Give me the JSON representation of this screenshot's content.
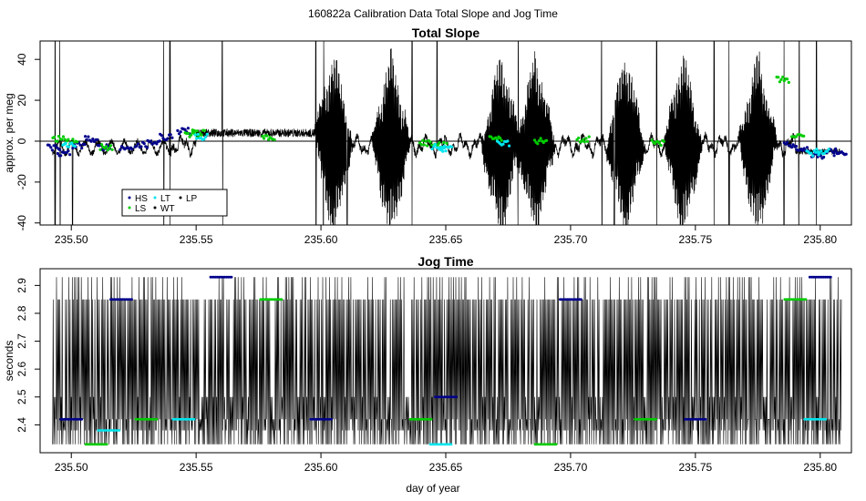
{
  "figure": {
    "title": "160822a   Calibration Data Total Slope and Jog Time",
    "xlabel": "day of year"
  },
  "colors": {
    "HS": "#00008b",
    "LS": "#00cc00",
    "LT": "#00e5ee",
    "WT": "#000000",
    "LP": "#000000",
    "trace": "#000000",
    "zero_line": "#000000"
  },
  "legend": {
    "placement": "bottom-left",
    "items": [
      {
        "label": "HS",
        "color": "#00008b"
      },
      {
        "label": "LS",
        "color": "#00cc00"
      },
      {
        "label": "LT",
        "color": "#00e5ee"
      },
      {
        "label": "WT",
        "color": "#000000"
      },
      {
        "label": "LP",
        "color": "#000000"
      }
    ]
  },
  "chart_data": [
    {
      "type": "line",
      "title": "Total Slope",
      "xlabel": "",
      "ylabel": "approx. per meg",
      "xlim": [
        235.4875,
        235.8125
      ],
      "ylim": [
        -41,
        49
      ],
      "xticks": [
        235.5,
        235.55,
        235.6,
        235.65,
        235.7,
        235.75,
        235.8
      ],
      "xtick_labels": [
        "235.50",
        "235.55",
        "235.60",
        "235.65",
        "235.70",
        "235.75",
        "235.80"
      ],
      "yticks": [
        -40,
        -20,
        0,
        20,
        40
      ],
      "ytick_labels": [
        "-40",
        "-20",
        "0",
        "20",
        "40"
      ],
      "hline": 0,
      "grid": false,
      "series": [
        {
          "name": "HS",
          "x": [
            235.493,
            235.497,
            235.503,
            235.508,
            235.513,
            235.522,
            235.528,
            235.533,
            235.538,
            235.545,
            235.788,
            235.793,
            235.799,
            235.805,
            235.808
          ],
          "y": [
            -3,
            -6,
            -2,
            1,
            -3,
            -4,
            -2,
            0,
            2,
            5,
            -2,
            -4,
            -7,
            -5,
            -6
          ]
        },
        {
          "name": "LS",
          "x": [
            235.495,
            235.5,
            235.514,
            235.548,
            235.551,
            235.579,
            235.642,
            235.648,
            235.67,
            235.688,
            235.705,
            235.735,
            235.785,
            235.791
          ],
          "y": [
            1,
            0,
            -3,
            3,
            4,
            2,
            -1,
            -2,
            1,
            0,
            1,
            -1,
            30,
            2
          ]
        },
        {
          "name": "LT",
          "x": [
            235.499,
            235.552,
            235.647,
            235.65,
            235.673,
            235.797,
            235.801
          ],
          "y": [
            -2,
            2,
            -3,
            -4,
            -1,
            -6,
            -5
          ]
        }
      ]
    },
    {
      "type": "line",
      "title": "Jog Time",
      "xlabel": "day of year",
      "ylabel": "seconds",
      "xlim": [
        235.4875,
        235.8125
      ],
      "ylim": [
        2.3,
        2.96
      ],
      "xticks": [
        235.5,
        235.55,
        235.6,
        235.65,
        235.7,
        235.75,
        235.8
      ],
      "xtick_labels": [
        "235.50",
        "235.55",
        "235.60",
        "235.65",
        "235.70",
        "235.75",
        "235.80"
      ],
      "yticks": [
        2.4,
        2.5,
        2.6,
        2.7,
        2.8,
        2.9
      ],
      "ytick_labels": [
        "2.4",
        "2.5",
        "2.6",
        "2.7",
        "2.8",
        "2.9"
      ],
      "grid": false,
      "levels": [
        2.33,
        2.38,
        2.42,
        2.5,
        2.85,
        2.93
      ],
      "series": [
        {
          "name": "HS",
          "x": [
            235.5,
            235.52,
            235.56,
            235.6,
            235.65,
            235.7,
            235.75,
            235.8
          ],
          "y": [
            2.42,
            2.85,
            2.93,
            2.42,
            2.5,
            2.85,
            2.42,
            2.93
          ]
        },
        {
          "name": "LS",
          "x": [
            235.51,
            235.53,
            235.58,
            235.64,
            235.69,
            235.73,
            235.79
          ],
          "y": [
            2.33,
            2.42,
            2.85,
            2.42,
            2.33,
            2.42,
            2.85
          ]
        },
        {
          "name": "LT",
          "x": [
            235.515,
            235.545,
            235.648,
            235.798
          ],
          "y": [
            2.38,
            2.42,
            2.33,
            2.42
          ]
        }
      ]
    }
  ]
}
